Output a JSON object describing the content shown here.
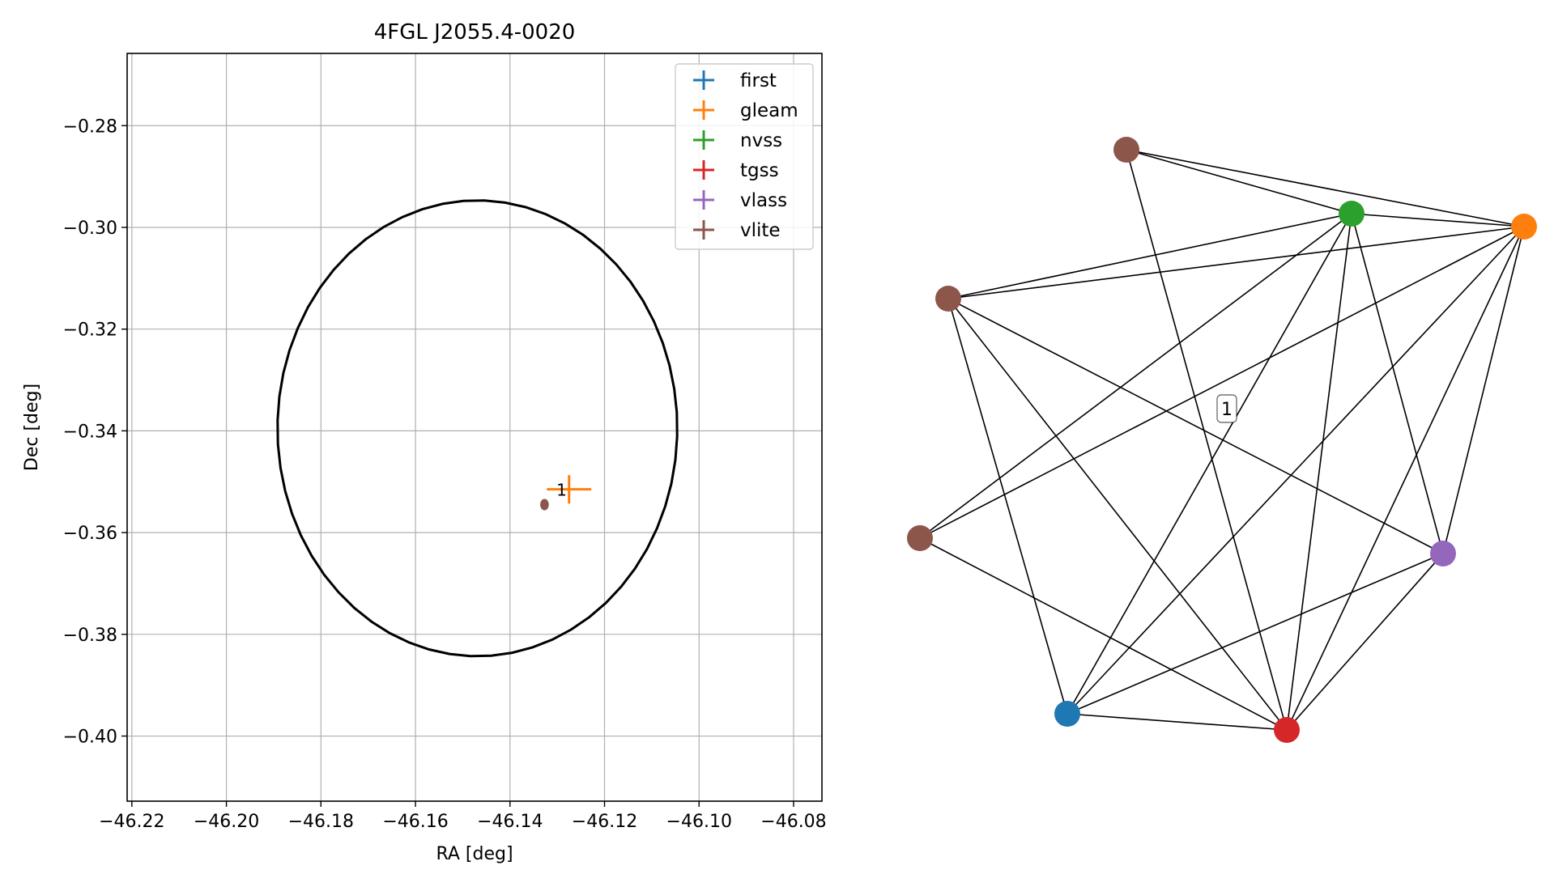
{
  "chart_data": [
    {
      "type": "scatter",
      "title": "4FGL J2055.4-0020",
      "xlabel": "RA [deg]",
      "ylabel": "Dec [deg]",
      "xlim": [
        -46.221,
        -46.074
      ],
      "ylim": [
        -0.4128,
        -0.2658
      ],
      "x_ticks": [
        -46.22,
        -46.2,
        -46.18,
        -46.16,
        -46.14,
        -46.12,
        -46.1,
        -46.08
      ],
      "x_tick_labels": [
        "−46.22",
        "−46.20",
        "−46.18",
        "−46.16",
        "−46.14",
        "−46.12",
        "−46.10",
        "−46.08"
      ],
      "y_ticks": [
        -0.28,
        -0.3,
        -0.32,
        -0.34,
        -0.36,
        -0.38,
        -0.4
      ],
      "y_tick_labels": [
        "−0.28",
        "−0.30",
        "−0.32",
        "−0.34",
        "−0.36",
        "−0.38",
        "−0.40"
      ],
      "grid": true,
      "legend_position": "top-right",
      "ellipse": {
        "center": [
          -46.1469,
          -0.3395
        ],
        "semi_x": 0.0423,
        "semi_y": 0.0448,
        "tilt_deg": -8
      },
      "series": [
        {
          "name": "first",
          "color": "#1f77b4",
          "points": []
        },
        {
          "name": "gleam",
          "color": "#ff7f0e",
          "points": [
            {
              "x": -46.1275,
              "y": -0.3515,
              "xerr": 0.0047,
              "yerr": 0.0028
            }
          ]
        },
        {
          "name": "nvss",
          "color": "#2ca02c",
          "points": []
        },
        {
          "name": "tgss",
          "color": "#d62728",
          "points": []
        },
        {
          "name": "vlass",
          "color": "#9467bd",
          "points": []
        },
        {
          "name": "vlite",
          "color": "#8c564b",
          "points": [
            {
              "x": -46.1327,
              "y": -0.3545,
              "xerr": 0.0004,
              "yerr": 0.0008
            }
          ]
        }
      ],
      "annotations": [
        {
          "text": "1",
          "x": -46.1288,
          "y": -0.3515
        }
      ]
    },
    {
      "type": "network",
      "nodes": [
        {
          "id": "n0",
          "color": "#8c564b"
        },
        {
          "id": "n1",
          "color": "#2ca02c"
        },
        {
          "id": "n2",
          "color": "#ff7f0e"
        },
        {
          "id": "n3",
          "color": "#8c564b"
        },
        {
          "id": "n4",
          "color": "#8c564b"
        },
        {
          "id": "n5",
          "color": "#9467bd"
        },
        {
          "id": "n6",
          "color": "#1f77b4"
        },
        {
          "id": "n7",
          "color": "#d62728"
        }
      ],
      "edges": [
        [
          "n0",
          "n1"
        ],
        [
          "n0",
          "n2"
        ],
        [
          "n0",
          "n7"
        ],
        [
          "n1",
          "n2"
        ],
        [
          "n1",
          "n3"
        ],
        [
          "n1",
          "n6"
        ],
        [
          "n1",
          "n7"
        ],
        [
          "n1",
          "n5"
        ],
        [
          "n1",
          "n4"
        ],
        [
          "n2",
          "n3"
        ],
        [
          "n2",
          "n4"
        ],
        [
          "n2",
          "n6"
        ],
        [
          "n2",
          "n7"
        ],
        [
          "n2",
          "n5"
        ],
        [
          "n3",
          "n6"
        ],
        [
          "n3",
          "n7"
        ],
        [
          "n3",
          "n5"
        ],
        [
          "n4",
          "n7"
        ],
        [
          "n5",
          "n6"
        ],
        [
          "n5",
          "n7"
        ],
        [
          "n6",
          "n7"
        ]
      ],
      "label": "1"
    }
  ]
}
